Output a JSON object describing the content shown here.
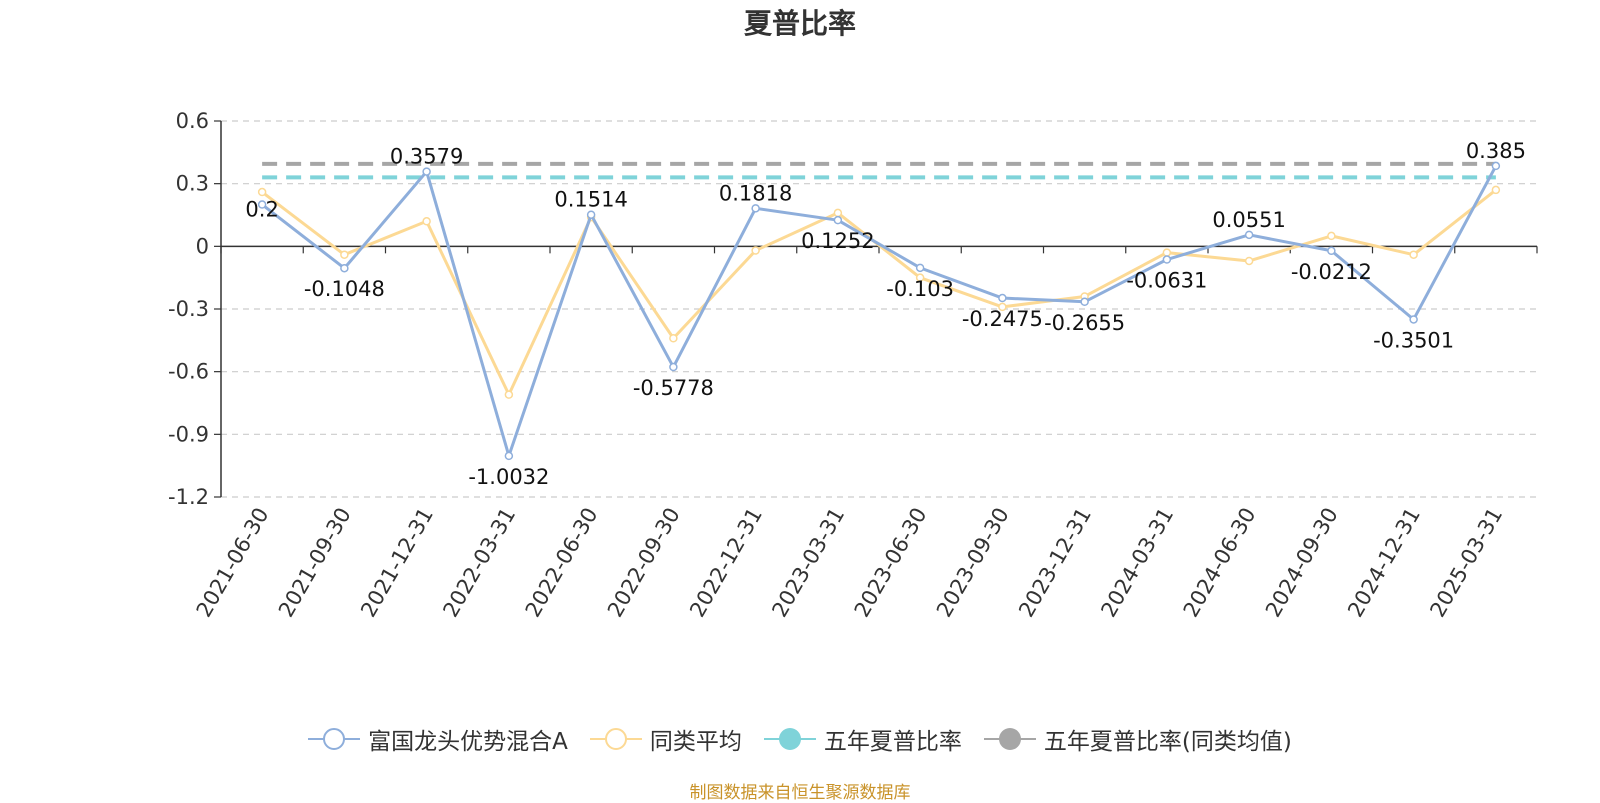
{
  "title": "夏普比率",
  "source_note": "制图数据来自恒生聚源数据库",
  "chart_data": {
    "type": "line",
    "categories": [
      "2021-06-30",
      "2021-09-30",
      "2021-12-31",
      "2022-03-31",
      "2022-06-30",
      "2022-09-30",
      "2022-12-31",
      "2023-03-31",
      "2023-06-30",
      "2023-09-30",
      "2023-12-31",
      "2024-03-31",
      "2024-06-30",
      "2024-09-30",
      "2024-12-31",
      "2025-03-31"
    ],
    "ylim": [
      -1.2,
      0.6
    ],
    "yticks": [
      0.6,
      0.3,
      0,
      -0.3,
      -0.6,
      -0.9,
      -1.2
    ],
    "ytick_labels": [
      "0.6",
      "0.3",
      "0",
      "-0.3",
      "-0.6",
      "-0.9",
      "-1.2"
    ],
    "grid": true,
    "legend_position": "bottom",
    "series": [
      {
        "name": "富国龙头优势混合A",
        "color": "#8eaedb",
        "values": [
          0.2,
          -0.1048,
          0.3579,
          -1.0032,
          0.1514,
          -0.5778,
          0.1818,
          0.1252,
          -0.103,
          -0.2475,
          -0.2655,
          -0.0631,
          0.0551,
          -0.0212,
          -0.3501,
          0.385
        ],
        "labels": [
          "0.2",
          "-0.1048",
          "0.3579",
          "-1.0032",
          "0.1514",
          "-0.5778",
          "0.1818",
          "0.1252",
          "-0.103",
          "-0.2475",
          "-0.2655",
          "-0.0631",
          "0.0551",
          "-0.0212",
          "-0.3501",
          "0.385"
        ]
      },
      {
        "name": "同类平均",
        "color": "#fcd994",
        "values": [
          0.26,
          -0.04,
          0.12,
          -0.71,
          0.14,
          -0.44,
          -0.02,
          0.16,
          -0.15,
          -0.29,
          -0.24,
          -0.03,
          -0.07,
          0.05,
          -0.04,
          0.27
        ]
      }
    ],
    "reference_lines": [
      {
        "name": "五年夏普比率",
        "color": "#7fd3d9",
        "value": 0.33
      },
      {
        "name": "五年夏普比率(同类均值)",
        "color": "#a6a6a6",
        "value": 0.395
      }
    ]
  }
}
